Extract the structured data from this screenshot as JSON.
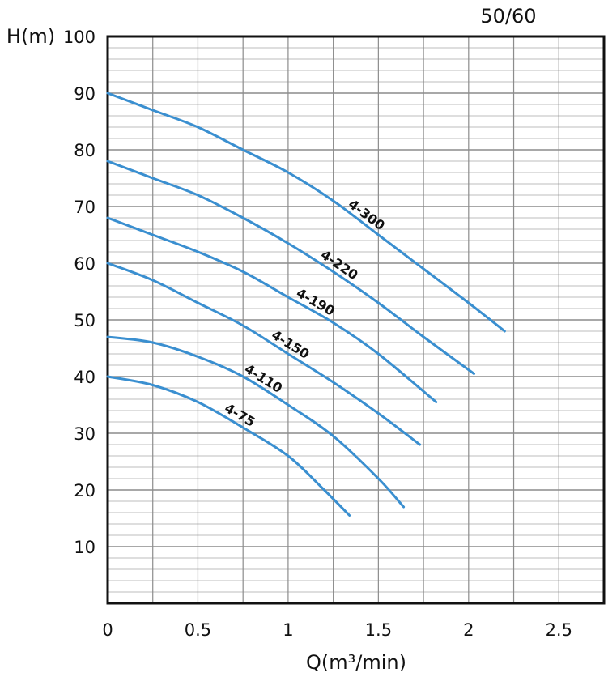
{
  "chart_data": {
    "type": "line",
    "title": "50/60",
    "xlabel": "Q(m³/min)",
    "ylabel": "H(m)",
    "xlim": [
      0,
      2.75
    ],
    "ylim": [
      0,
      100
    ],
    "x_ticks": [
      "0",
      "0.5",
      "1",
      "1.5",
      "2",
      "2.5"
    ],
    "y_ticks": [
      "10",
      "20",
      "30",
      "40",
      "50",
      "60",
      "70",
      "80",
      "90",
      "100"
    ],
    "grid": true,
    "series": [
      {
        "name": "4-300",
        "color": "#3a8fd0",
        "x": [
          0,
          0.25,
          0.5,
          0.75,
          1.0,
          1.25,
          1.5,
          1.75,
          2.0,
          2.2
        ],
        "y": [
          90,
          87,
          84,
          80,
          76,
          71,
          65,
          59,
          53,
          48
        ]
      },
      {
        "name": "4-220",
        "color": "#3a8fd0",
        "x": [
          0,
          0.25,
          0.5,
          0.75,
          1.0,
          1.25,
          1.5,
          1.75,
          2.03
        ],
        "y": [
          78,
          75,
          72,
          68,
          63.5,
          58.5,
          53,
          47,
          40.5
        ]
      },
      {
        "name": "4-190",
        "color": "#3a8fd0",
        "x": [
          0,
          0.25,
          0.5,
          0.75,
          1.0,
          1.25,
          1.5,
          1.82
        ],
        "y": [
          68,
          65,
          62,
          58.5,
          54,
          49.5,
          44,
          35.5
        ]
      },
      {
        "name": "4-150",
        "color": "#3a8fd0",
        "x": [
          0,
          0.25,
          0.5,
          0.75,
          1.0,
          1.25,
          1.5,
          1.73
        ],
        "y": [
          60,
          57,
          53,
          49,
          44,
          39,
          33.5,
          28
        ]
      },
      {
        "name": "4-110",
        "color": "#3a8fd0",
        "x": [
          0,
          0.25,
          0.5,
          0.75,
          1.0,
          1.25,
          1.5,
          1.64
        ],
        "y": [
          47,
          46,
          43.5,
          40,
          35,
          29.5,
          22,
          17
        ]
      },
      {
        "name": "4-75",
        "color": "#3a8fd0",
        "x": [
          0,
          0.25,
          0.5,
          0.75,
          1.0,
          1.2,
          1.34
        ],
        "y": [
          40,
          38.5,
          35.5,
          31,
          26,
          20,
          15.5
        ]
      }
    ]
  }
}
